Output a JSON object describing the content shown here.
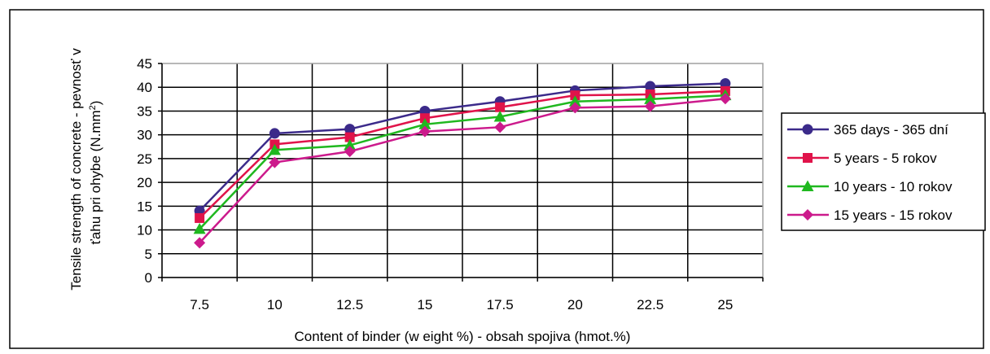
{
  "chart_data": {
    "type": "line",
    "title": "",
    "xlabel": "Content of binder (w eight %) - obsah spojiva (hmot.%)",
    "ylabel_line1": "Tensile strength of concrete - pevnosť v",
    "ylabel_line2": "ťahu pri ohybe (N.mm",
    "ylabel_sup": "2",
    "ylabel_end": ")",
    "categories": [
      "7.5",
      "10",
      "12.5",
      "15",
      "17.5",
      "20",
      "22.5",
      "25"
    ],
    "y_ticks": [
      "0",
      "5",
      "10",
      "15",
      "20",
      "25",
      "30",
      "35",
      "40",
      "45"
    ],
    "ylim": [
      0,
      45
    ],
    "grid": true,
    "legend_position": "right",
    "plot_background": "#ffffff",
    "series": [
      {
        "name": "365 days - 365 dní",
        "values": [
          14.0,
          30.3,
          31.2,
          35.0,
          37.0,
          39.3,
          40.2,
          40.8
        ],
        "color": "#3b2a8a",
        "marker": "circle"
      },
      {
        "name": "5 years - 5 rokov",
        "values": [
          12.5,
          28.0,
          29.5,
          33.5,
          35.8,
          38.3,
          38.5,
          39.2
        ],
        "color": "#e0134a",
        "marker": "square"
      },
      {
        "name": "10 years - 10 rokov",
        "values": [
          10.2,
          26.8,
          27.8,
          32.2,
          33.8,
          37.0,
          37.5,
          38.3
        ],
        "color": "#1fb81f",
        "marker": "triangle"
      },
      {
        "name": "15 years - 15 rokov",
        "values": [
          7.3,
          24.2,
          26.5,
          30.7,
          31.6,
          35.7,
          36.0,
          37.6
        ],
        "color": "#cc1a8c",
        "marker": "diamond"
      }
    ]
  }
}
